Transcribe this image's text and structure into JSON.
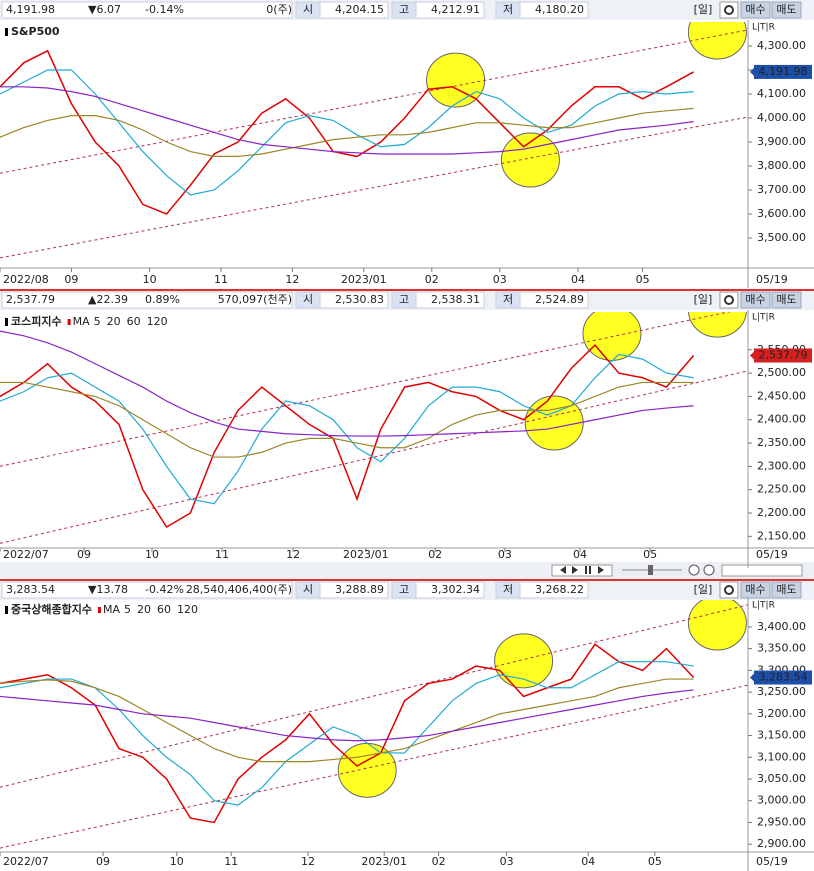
{
  "scale_buttons": "L|T|R",
  "headers": [
    {
      "price": "4,191.98",
      "change": "▼6.07",
      "pct": "-0.14%",
      "volume": "0(주)",
      "open_label": "시",
      "open": "4,204.15",
      "high_label": "고",
      "high": "4,212.91",
      "low_label": "저",
      "low": "4,180.20",
      "period": "[일]",
      "buy": "매수",
      "sell": "매도",
      "color": "#1d3f9a"
    },
    {
      "price": "2,537.79",
      "change": "▲22.39",
      "pct": "0.89%",
      "volume": "570,097(천주)",
      "open_label": "시",
      "open": "2,530.83",
      "high_label": "고",
      "high": "2,538.31",
      "low_label": "저",
      "low": "2,524.89",
      "period": "[일]",
      "buy": "매수",
      "sell": "매도",
      "color": "#d40000"
    },
    {
      "price": "3,283.54",
      "change": "▼13.78",
      "pct": "-0.42%",
      "volume": "28,540,406,400(주)",
      "open_label": "시",
      "open": "3,288.89",
      "high_label": "고",
      "high": "3,302.34",
      "low_label": "저",
      "low": "3,268.22",
      "period": "[일]",
      "buy": "매수",
      "sell": "매도",
      "color": "#1d3f9a"
    }
  ],
  "chart_data": [
    {
      "type": "line",
      "title": "S&P500",
      "last_date": "05/19",
      "tag_color": "#1d4fa8",
      "x": [
        0,
        7,
        14,
        21,
        28,
        35,
        42,
        49,
        56,
        63,
        70,
        77,
        84,
        91,
        98,
        105,
        112,
        119,
        126,
        133,
        140,
        147,
        154,
        161,
        168,
        175,
        182,
        189,
        196,
        204
      ],
      "xlim": [
        0,
        220
      ],
      "xticks": [
        {
          "value": 0,
          "label": "2022/08"
        },
        {
          "value": 21,
          "label": "09"
        },
        {
          "value": 44,
          "label": "10"
        },
        {
          "value": 65,
          "label": "11"
        },
        {
          "value": 86,
          "label": "12"
        },
        {
          "value": 107,
          "label": "2023/01"
        },
        {
          "value": 127,
          "label": "02"
        },
        {
          "value": 147,
          "label": "03"
        },
        {
          "value": 170,
          "label": "04"
        },
        {
          "value": 189,
          "label": "05"
        }
      ],
      "ylim": [
        3375,
        4400
      ],
      "yticks": [
        {
          "value": 3500,
          "label": "3,500.00"
        },
        {
          "value": 3600,
          "label": "3,600.00"
        },
        {
          "value": 3700,
          "label": "3,700.00"
        },
        {
          "value": 3800,
          "label": "3,800.00"
        },
        {
          "value": 3900,
          "label": "3,900.00"
        },
        {
          "value": 4000,
          "label": "4,000.00"
        },
        {
          "value": 4100,
          "label": "4,100.00"
        },
        {
          "value": 4200,
          "label": "4,200.00"
        },
        {
          "value": 4300,
          "label": "4,300.00"
        }
      ],
      "series": [
        {
          "color": "#e00000",
          "values": [
            4130,
            4230,
            4280,
            4060,
            3900,
            3800,
            3640,
            3600,
            3720,
            3850,
            3900,
            4020,
            4080,
            4000,
            3860,
            3840,
            3900,
            4000,
            4120,
            4130,
            4080,
            3980,
            3880,
            3950,
            4050,
            4130,
            4130,
            4080,
            4130,
            4191.98
          ]
        },
        {
          "color": "#1fa9d6",
          "values": [
            4100,
            4150,
            4200,
            4200,
            4100,
            3980,
            3860,
            3760,
            3680,
            3700,
            3780,
            3880,
            3980,
            4010,
            3990,
            3930,
            3880,
            3890,
            3960,
            4050,
            4110,
            4080,
            4000,
            3940,
            3970,
            4050,
            4100,
            4110,
            4100,
            4110
          ]
        },
        {
          "color": "#9c8628",
          "values": [
            3920,
            3960,
            3990,
            4010,
            4010,
            3990,
            3950,
            3900,
            3860,
            3840,
            3840,
            3850,
            3870,
            3890,
            3910,
            3920,
            3930,
            3930,
            3940,
            3960,
            3980,
            3980,
            3970,
            3960,
            3960,
            3980,
            4000,
            4020,
            4030,
            4040
          ]
        },
        {
          "color": "#8a22c8",
          "values": [
            4130,
            4130,
            4125,
            4110,
            4090,
            4060,
            4030,
            4000,
            3970,
            3940,
            3910,
            3890,
            3880,
            3870,
            3860,
            3855,
            3850,
            3850,
            3850,
            3850,
            3855,
            3860,
            3870,
            3890,
            3910,
            3930,
            3950,
            3960,
            3970,
            3985
          ]
        }
      ],
      "trendlines": [
        {
          "x": [
            0,
            220
          ],
          "y": [
            3770,
            4367
          ]
        },
        {
          "x": [
            0,
            220
          ],
          "y": [
            3417,
            4004
          ]
        }
      ],
      "highlights": [
        {
          "x": 134,
          "y": 4158
        },
        {
          "x": 156,
          "y": 3825
        },
        {
          "x": 211,
          "y": 4358
        }
      ]
    },
    {
      "type": "line",
      "title": "코스피지수",
      "legend_prefix": "MA",
      "last_date": "05/19",
      "tag_color": "#d42020",
      "x": [
        0,
        7,
        14,
        21,
        28,
        35,
        42,
        49,
        56,
        63,
        70,
        77,
        84,
        91,
        98,
        105,
        112,
        119,
        126,
        133,
        140,
        147,
        154,
        161,
        168,
        175,
        182,
        189,
        196,
        204
      ],
      "xlim": [
        0,
        220
      ],
      "xticks": [
        {
          "value": 0,
          "label": "2022/07"
        },
        {
          "value": 24.7,
          "label": "09"
        },
        {
          "value": 44.7,
          "label": "10"
        },
        {
          "value": 65.3,
          "label": "11"
        },
        {
          "value": 86.2,
          "label": "12"
        },
        {
          "value": 107.6,
          "label": "2023/01"
        },
        {
          "value": 128,
          "label": "02"
        },
        {
          "value": 148.5,
          "label": "03"
        },
        {
          "value": 170.6,
          "label": "04"
        },
        {
          "value": 191.2,
          "label": "05"
        }
      ],
      "ylim": [
        2125,
        2631
      ],
      "yticks": [
        {
          "value": 2150,
          "label": "2,150.00"
        },
        {
          "value": 2200,
          "label": "2,200.00"
        },
        {
          "value": 2250,
          "label": "2,250.00"
        },
        {
          "value": 2300,
          "label": "2,300.00"
        },
        {
          "value": 2350,
          "label": "2,350.00"
        },
        {
          "value": 2400,
          "label": "2,400.00"
        },
        {
          "value": 2450,
          "label": "2,450.00"
        },
        {
          "value": 2500,
          "label": "2,500.00"
        },
        {
          "value": 2550,
          "label": "2,550.00"
        }
      ],
      "series": [
        {
          "name": "5",
          "color": "#e00000",
          "values": [
            2450,
            2480,
            2520,
            2470,
            2440,
            2390,
            2250,
            2170,
            2200,
            2330,
            2420,
            2470,
            2430,
            2390,
            2360,
            2230,
            2380,
            2470,
            2480,
            2460,
            2450,
            2420,
            2400,
            2440,
            2510,
            2560,
            2500,
            2490,
            2470,
            2537.79
          ]
        },
        {
          "name": "20",
          "color": "#1fa9d6",
          "values": [
            2440,
            2460,
            2490,
            2500,
            2470,
            2440,
            2380,
            2300,
            2230,
            2220,
            2290,
            2380,
            2440,
            2430,
            2400,
            2340,
            2310,
            2360,
            2430,
            2470,
            2470,
            2460,
            2430,
            2410,
            2430,
            2490,
            2540,
            2530,
            2500,
            2490
          ]
        },
        {
          "name": "60",
          "color": "#9c8628",
          "values": [
            2480,
            2480,
            2470,
            2460,
            2450,
            2430,
            2400,
            2370,
            2340,
            2320,
            2320,
            2330,
            2350,
            2360,
            2360,
            2350,
            2340,
            2340,
            2360,
            2390,
            2410,
            2420,
            2420,
            2420,
            2430,
            2450,
            2470,
            2480,
            2480,
            2480
          ]
        },
        {
          "name": "120",
          "color": "#8a22c8",
          "values": [
            2590,
            2580,
            2565,
            2545,
            2520,
            2495,
            2470,
            2440,
            2415,
            2395,
            2380,
            2375,
            2370,
            2368,
            2366,
            2365,
            2365,
            2366,
            2368,
            2370,
            2372,
            2374,
            2376,
            2380,
            2390,
            2400,
            2410,
            2420,
            2425,
            2430
          ]
        }
      ],
      "trendlines": [
        {
          "x": [
            0,
            220
          ],
          "y": [
            2135,
            2505
          ]
        },
        {
          "x": [
            0,
            220
          ],
          "y": [
            2300,
            2640
          ]
        }
      ],
      "highlights": [
        {
          "x": 180,
          "y": 2585
        },
        {
          "x": 163,
          "y": 2393
        },
        {
          "x": 211,
          "y": 2635
        }
      ]
    },
    {
      "type": "line",
      "title": "중국상해종합지수",
      "legend_prefix": "MA",
      "last_date": "05/19",
      "tag_color": "#1d4fa8",
      "x": [
        0,
        7,
        14,
        21,
        28,
        35,
        42,
        49,
        56,
        63,
        70,
        77,
        84,
        91,
        98,
        105,
        112,
        119,
        126,
        133,
        140,
        147,
        154,
        161,
        168,
        175,
        182,
        189,
        196,
        204
      ],
      "xlim": [
        0,
        220
      ],
      "xticks": [
        {
          "value": 0,
          "label": "2022/07"
        },
        {
          "value": 30.3,
          "label": "09"
        },
        {
          "value": 52,
          "label": "10"
        },
        {
          "value": 68,
          "label": "11"
        },
        {
          "value": 90.6,
          "label": "12"
        },
        {
          "value": 113,
          "label": "2023/01"
        },
        {
          "value": 129,
          "label": "02"
        },
        {
          "value": 149,
          "label": "03"
        },
        {
          "value": 173,
          "label": "04"
        },
        {
          "value": 192.6,
          "label": "05"
        }
      ],
      "ylim": [
        2882,
        3462
      ],
      "yticks": [
        {
          "value": 2900,
          "label": "2,900.00"
        },
        {
          "value": 2950,
          "label": "2,950.00"
        },
        {
          "value": 3000,
          "label": "3,000.00"
        },
        {
          "value": 3050,
          "label": "3,050.00"
        },
        {
          "value": 3100,
          "label": "3,100.00"
        },
        {
          "value": 3150,
          "label": "3,150.00"
        },
        {
          "value": 3200,
          "label": "3,200.00"
        },
        {
          "value": 3250,
          "label": "3,250.00"
        },
        {
          "value": 3300,
          "label": "3,300.00"
        },
        {
          "value": 3350,
          "label": "3,350.00"
        },
        {
          "value": 3400,
          "label": "3,400.00"
        }
      ],
      "series": [
        {
          "name": "5",
          "color": "#e00000",
          "values": [
            3270,
            3280,
            3290,
            3260,
            3220,
            3120,
            3100,
            3050,
            2960,
            2950,
            3050,
            3100,
            3140,
            3200,
            3130,
            3080,
            3110,
            3230,
            3270,
            3280,
            3310,
            3300,
            3240,
            3260,
            3280,
            3360,
            3320,
            3300,
            3350,
            3283.54
          ]
        },
        {
          "name": "20",
          "color": "#1fa9d6",
          "values": [
            3260,
            3270,
            3280,
            3280,
            3260,
            3210,
            3150,
            3100,
            3060,
            3000,
            2990,
            3030,
            3090,
            3130,
            3170,
            3150,
            3110,
            3110,
            3170,
            3230,
            3270,
            3290,
            3280,
            3260,
            3260,
            3290,
            3320,
            3320,
            3320,
            3310
          ]
        },
        {
          "name": "60",
          "color": "#9c8628",
          "values": [
            3270,
            3275,
            3278,
            3275,
            3260,
            3240,
            3210,
            3180,
            3150,
            3120,
            3100,
            3090,
            3090,
            3090,
            3095,
            3100,
            3110,
            3120,
            3140,
            3160,
            3180,
            3200,
            3210,
            3220,
            3230,
            3240,
            3260,
            3270,
            3280,
            3280
          ]
        },
        {
          "name": "120",
          "color": "#8a22c8",
          "values": [
            3240,
            3235,
            3230,
            3225,
            3220,
            3210,
            3200,
            3195,
            3190,
            3180,
            3170,
            3160,
            3150,
            3145,
            3140,
            3138,
            3140,
            3145,
            3150,
            3160,
            3170,
            3180,
            3190,
            3200,
            3210,
            3220,
            3230,
            3240,
            3248,
            3255
          ]
        }
      ],
      "trendlines": [
        {
          "x": [
            0,
            220
          ],
          "y": [
            3031,
            3451
          ]
        },
        {
          "x": [
            0,
            220
          ],
          "y": [
            2891,
            3266
          ]
        }
      ],
      "highlights": [
        {
          "x": 154,
          "y": 3322
        },
        {
          "x": 108,
          "y": 3070
        },
        {
          "x": 211,
          "y": 3409
        }
      ]
    }
  ]
}
